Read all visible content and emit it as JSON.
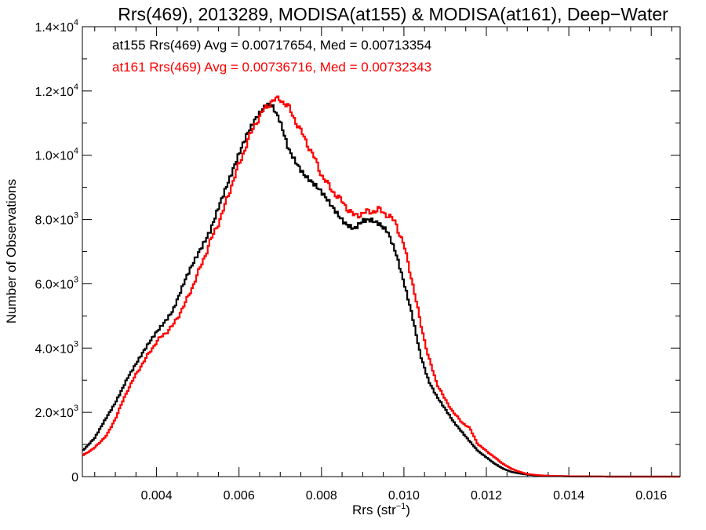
{
  "chart_data": {
    "type": "line",
    "title": "Rrs(469), 2013289, MODISA(at155) & MODISA(at161), Deep−Water",
    "xlabel": "Rrs (str",
    "xlabel_sup": "−1",
    "xlabel_close": ")",
    "ylabel": "Number of Observations",
    "xlim": [
      0.0022,
      0.0167
    ],
    "ylim": [
      0,
      14000
    ],
    "xticks": [
      {
        "value": 0.004,
        "label": "0.004"
      },
      {
        "value": 0.006,
        "label": "0.006"
      },
      {
        "value": 0.008,
        "label": "0.008"
      },
      {
        "value": 0.01,
        "label": "0.010"
      },
      {
        "value": 0.012,
        "label": "0.012"
      },
      {
        "value": 0.014,
        "label": "0.014"
      },
      {
        "value": 0.016,
        "label": "0.016"
      }
    ],
    "yticks": [
      {
        "value": 0,
        "mant": "0",
        "exp": ""
      },
      {
        "value": 2000,
        "mant": "2.0×10",
        "exp": "3"
      },
      {
        "value": 4000,
        "mant": "4.0×10",
        "exp": "3"
      },
      {
        "value": 6000,
        "mant": "6.0×10",
        "exp": "3"
      },
      {
        "value": 8000,
        "mant": "8.0×10",
        "exp": "3"
      },
      {
        "value": 10000,
        "mant": "1.0×10",
        "exp": "4"
      },
      {
        "value": 12000,
        "mant": "1.2×10",
        "exp": "4"
      },
      {
        "value": 14000,
        "mant": "1.4×10",
        "exp": "4"
      }
    ],
    "annotations": [
      {
        "text": "at155 Rrs(469) Avg = 0.00717654, Med = 0.00713354",
        "color": "#000000"
      },
      {
        "text": "at161 Rrs(469) Avg = 0.00736716, Med = 0.00732343",
        "color": "#ff0000"
      }
    ],
    "series": [
      {
        "color": "#000000",
        "x": [
          0.0022,
          0.0025,
          0.003,
          0.0033,
          0.0036,
          0.004,
          0.0044,
          0.0047,
          0.005,
          0.0053,
          0.0055,
          0.0058,
          0.006,
          0.0062,
          0.0064,
          0.0066,
          0.0067,
          0.0068,
          0.007,
          0.0072,
          0.0074,
          0.0076,
          0.0078,
          0.008,
          0.0082,
          0.0084,
          0.0086,
          0.0088,
          0.009,
          0.0092,
          0.0094,
          0.0096,
          0.0098,
          0.01,
          0.0102,
          0.0104,
          0.0106,
          0.0108,
          0.011,
          0.0112,
          0.0114,
          0.0116,
          0.0118,
          0.012,
          0.0122,
          0.0124,
          0.0126,
          0.0128,
          0.013,
          0.0132,
          0.0134,
          0.0136,
          0.014,
          0.0145,
          0.015,
          0.016,
          0.0167
        ],
        "y": [
          800,
          1200,
          2300,
          3100,
          3700,
          4500,
          5200,
          6100,
          6900,
          7700,
          8400,
          9300,
          10000,
          10700,
          11200,
          11500,
          11550,
          11500,
          11000,
          10200,
          9800,
          9400,
          9100,
          8800,
          8500,
          8200,
          7900,
          7700,
          7900,
          7950,
          7900,
          7700,
          7000,
          6000,
          5000,
          3800,
          3000,
          2500,
          2100,
          1700,
          1400,
          1100,
          800,
          600,
          400,
          250,
          150,
          100,
          60,
          40,
          30,
          20,
          10,
          5,
          0,
          0,
          0
        ]
      },
      {
        "color": "#ff0000",
        "x": [
          0.0022,
          0.0025,
          0.0028,
          0.003,
          0.0033,
          0.0036,
          0.004,
          0.0044,
          0.0047,
          0.005,
          0.0053,
          0.0056,
          0.0058,
          0.006,
          0.0062,
          0.0064,
          0.0066,
          0.0068,
          0.007,
          0.0072,
          0.0074,
          0.0076,
          0.0078,
          0.008,
          0.0082,
          0.0084,
          0.0086,
          0.0088,
          0.009,
          0.0092,
          0.0094,
          0.0096,
          0.0098,
          0.01,
          0.0102,
          0.0104,
          0.0106,
          0.0108,
          0.011,
          0.0112,
          0.0114,
          0.0116,
          0.0118,
          0.012,
          0.0122,
          0.0124,
          0.0126,
          0.0128,
          0.013,
          0.0132,
          0.0134,
          0.0136,
          0.014,
          0.0145,
          0.015,
          0.016,
          0.0167
        ],
        "y": [
          650,
          900,
          1300,
          1800,
          2700,
          3400,
          4200,
          4700,
          5400,
          6300,
          7300,
          8200,
          9000,
          9700,
          10400,
          11000,
          11400,
          11700,
          11750,
          11500,
          11000,
          10500,
          10000,
          9400,
          9000,
          8700,
          8400,
          8100,
          8200,
          8250,
          8300,
          8150,
          7900,
          7200,
          6100,
          4800,
          3700,
          2900,
          2400,
          2000,
          1700,
          1500,
          1000,
          800,
          600,
          400,
          250,
          150,
          80,
          50,
          30,
          20,
          10,
          5,
          0,
          0,
          0
        ]
      }
    ]
  }
}
